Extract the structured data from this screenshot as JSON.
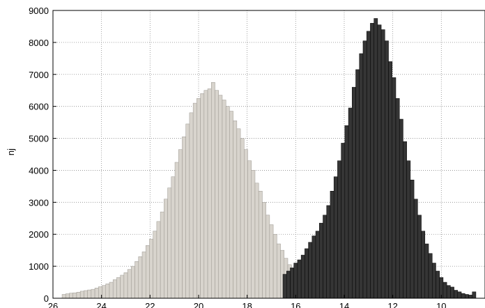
{
  "chart_data": {
    "type": "bar",
    "title": "",
    "xlabel": "",
    "ylabel": "nj",
    "xlim": [
      26,
      8.2
    ],
    "x_reversed": true,
    "ylim": [
      0,
      9000
    ],
    "grid": true,
    "xticks": [
      26,
      24,
      22,
      20,
      18,
      16,
      14,
      12,
      10
    ],
    "yticks": [
      0,
      1000,
      2000,
      3000,
      4000,
      5000,
      6000,
      7000,
      8000,
      9000
    ],
    "bin_width": 0.15,
    "series": [
      {
        "fill": "#d8d4cd",
        "stroke": "#9a968f",
        "x": [
          25.55,
          25.4,
          25.25,
          25.1,
          24.95,
          24.8,
          24.65,
          24.5,
          24.35,
          24.2,
          24.05,
          23.9,
          23.75,
          23.6,
          23.45,
          23.3,
          23.15,
          23.0,
          22.85,
          22.7,
          22.55,
          22.4,
          22.25,
          22.1,
          21.95,
          21.8,
          21.65,
          21.5,
          21.35,
          21.2,
          21.05,
          20.9,
          20.75,
          20.6,
          20.45,
          20.3,
          20.15,
          20.0,
          19.85,
          19.7,
          19.55,
          19.4,
          19.25,
          19.1,
          18.95,
          18.8,
          18.65,
          18.5,
          18.35,
          18.2,
          18.05,
          17.9,
          17.75,
          17.6,
          17.45,
          17.3,
          17.15,
          17.0,
          16.85,
          16.7,
          16.55,
          16.4,
          16.25,
          16.1,
          15.95,
          15.8,
          15.65,
          15.5,
          15.35,
          15.2
        ],
        "values": [
          120,
          140,
          160,
          170,
          190,
          220,
          240,
          260,
          280,
          320,
          360,
          400,
          450,
          500,
          580,
          650,
          720,
          800,
          900,
          1000,
          1150,
          1300,
          1450,
          1650,
          1850,
          2100,
          2400,
          2700,
          3100,
          3450,
          3800,
          4250,
          4650,
          5050,
          5450,
          5800,
          6100,
          6250,
          6400,
          6500,
          6550,
          6750,
          6500,
          6350,
          6200,
          6000,
          5850,
          5550,
          5300,
          5000,
          4650,
          4300,
          4000,
          3600,
          3350,
          3000,
          2600,
          2300,
          2000,
          1700,
          1500,
          1250,
          1050,
          900,
          750,
          600,
          450,
          350,
          250,
          150
        ]
      },
      {
        "fill": "#353535",
        "stroke": "#000000",
        "x": [
          16.45,
          16.3,
          16.15,
          16.0,
          15.85,
          15.7,
          15.55,
          15.4,
          15.25,
          15.1,
          14.95,
          14.8,
          14.65,
          14.5,
          14.35,
          14.2,
          14.05,
          13.9,
          13.75,
          13.6,
          13.45,
          13.3,
          13.15,
          13.0,
          12.85,
          12.7,
          12.55,
          12.4,
          12.25,
          12.1,
          11.95,
          11.8,
          11.65,
          11.5,
          11.35,
          11.2,
          11.05,
          10.9,
          10.75,
          10.6,
          10.45,
          10.3,
          10.15,
          10.0,
          9.85,
          9.7,
          9.55,
          9.4,
          9.25,
          9.1,
          8.95,
          8.8,
          8.65
        ],
        "values": [
          750,
          850,
          950,
          1100,
          1200,
          1350,
          1550,
          1750,
          1950,
          2100,
          2350,
          2600,
          2900,
          3350,
          3800,
          4300,
          4850,
          5400,
          5950,
          6600,
          7150,
          7650,
          8050,
          8350,
          8600,
          8750,
          8550,
          8400,
          8050,
          7400,
          6900,
          6250,
          5600,
          4900,
          4300,
          3700,
          3100,
          2600,
          2100,
          1700,
          1400,
          1100,
          850,
          650,
          500,
          400,
          350,
          250,
          200,
          150,
          120,
          100,
          200
        ]
      }
    ]
  }
}
